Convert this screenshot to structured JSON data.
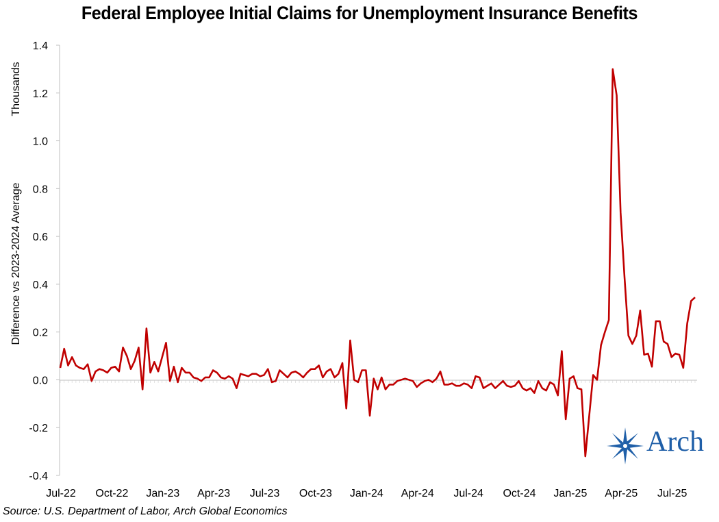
{
  "chart_data": {
    "type": "line",
    "title": "Federal Employee Initial Claims for Unemployment Insurance Benefits",
    "ylabel_unit": "Thousands",
    "ylabel": "Difference vs 2023-2024 Average",
    "source": "Source: U.S. Department of Labor, Arch Global Economics",
    "ylim": [
      -0.4,
      1.4
    ],
    "yticks": [
      -0.4,
      -0.2,
      0.0,
      0.2,
      0.4,
      0.6,
      0.8,
      1.0,
      1.2,
      1.4
    ],
    "ytick_labels": [
      "-0.4",
      "-0.2",
      "0.0",
      "0.2",
      "0.4",
      "0.6",
      "0.8",
      "1.0",
      "1.2",
      "1.4"
    ],
    "xtick_labels": [
      "Jul-22",
      "Oct-22",
      "Jan-23",
      "Apr-23",
      "Jul-23",
      "Oct-23",
      "Jan-24",
      "Apr-24",
      "Jul-24",
      "Oct-24",
      "Jan-25",
      "Apr-25",
      "Jul-25"
    ],
    "x_start": "2022-07-02",
    "x_frequency": "weekly",
    "grid": false,
    "legend": "none",
    "series": [
      {
        "color": "#c00000",
        "values": [
          0.05,
          0.13,
          0.06,
          0.095,
          0.06,
          0.05,
          0.045,
          0.065,
          -0.005,
          0.035,
          0.045,
          0.04,
          0.03,
          0.05,
          0.055,
          0.035,
          0.135,
          0.1,
          0.045,
          0.08,
          0.135,
          -0.04,
          0.215,
          0.03,
          0.075,
          0.035,
          0.095,
          0.155,
          -0.005,
          0.055,
          -0.01,
          0.05,
          0.03,
          0.03,
          0.01,
          0.005,
          -0.005,
          0.01,
          0.01,
          0.04,
          0.03,
          0.01,
          0.005,
          0.015,
          0.005,
          -0.035,
          0.025,
          0.02,
          0.015,
          0.025,
          0.025,
          0.015,
          0.02,
          0.045,
          -0.01,
          -0.005,
          0.04,
          0.025,
          0.01,
          0.03,
          0.035,
          0.025,
          0.01,
          0.03,
          0.045,
          0.045,
          0.06,
          0.01,
          0.035,
          0.045,
          0.01,
          0.025,
          0.07,
          -0.12,
          0.165,
          0.0,
          -0.01,
          0.04,
          0.04,
          -0.15,
          0.005,
          -0.04,
          0.01,
          -0.04,
          -0.02,
          -0.02,
          -0.005,
          0.0,
          0.005,
          0.0,
          -0.005,
          -0.03,
          -0.015,
          -0.005,
          0.0,
          -0.01,
          0.005,
          0.035,
          -0.02,
          -0.02,
          -0.015,
          -0.025,
          -0.025,
          -0.015,
          -0.02,
          -0.035,
          0.015,
          0.01,
          -0.035,
          -0.025,
          -0.015,
          -0.035,
          -0.02,
          -0.005,
          -0.025,
          -0.03,
          -0.025,
          -0.005,
          -0.035,
          -0.045,
          -0.035,
          -0.055,
          -0.005,
          -0.035,
          -0.045,
          -0.01,
          -0.02,
          -0.065,
          0.12,
          -0.165,
          0.005,
          0.015,
          -0.035,
          -0.04,
          -0.32,
          -0.15,
          0.02,
          0.0,
          0.145,
          0.2,
          0.25,
          1.3,
          1.19,
          0.7,
          0.43,
          0.185,
          0.15,
          0.185,
          0.29,
          0.105,
          0.11,
          0.055,
          0.245,
          0.245,
          0.16,
          0.15,
          0.095,
          0.11,
          0.105,
          0.05,
          0.235,
          0.33,
          0.345
        ]
      }
    ]
  },
  "logo": {
    "text": "Arch",
    "color": "#1f5fa8"
  }
}
